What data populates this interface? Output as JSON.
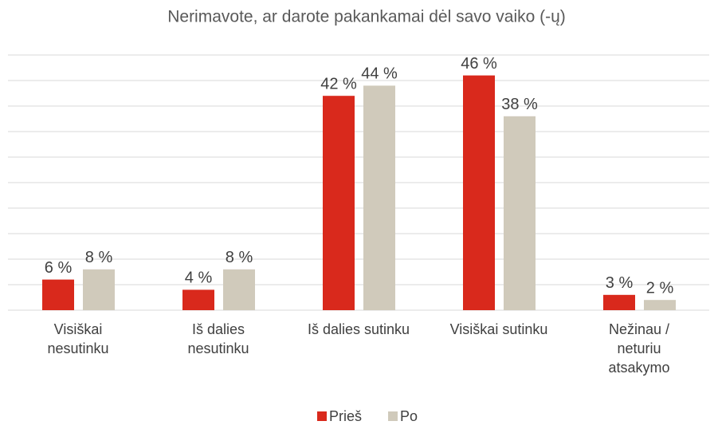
{
  "chart_data": {
    "type": "bar",
    "title": "Nerimavote, ar darote pakankamai dėl savo vaiko (-ų)",
    "categories": [
      [
        "Visiškai",
        "nesutinku"
      ],
      [
        "Iš dalies",
        "nesutinku"
      ],
      [
        "Iš dalies sutinku"
      ],
      [
        "Visiškai sutinku"
      ],
      [
        "Nežinau /",
        "neturiu",
        "atsakymo"
      ]
    ],
    "series": [
      {
        "name": "Prieš",
        "color": "#d9291c",
        "values": [
          6,
          4,
          42,
          46,
          3
        ],
        "value_labels": [
          "6 %",
          "4 %",
          "42 %",
          "46 %",
          "3 %"
        ]
      },
      {
        "name": "Po",
        "color": "#d0cabb",
        "values": [
          8,
          8,
          44,
          38,
          2
        ],
        "value_labels": [
          "8 %",
          "8 %",
          "44 %",
          "38 %",
          "2 %"
        ]
      }
    ],
    "ylim": [
      0,
      50
    ],
    "yticks": [
      0,
      5,
      10,
      15,
      20,
      25,
      30,
      35,
      40,
      45,
      50
    ],
    "grid": true,
    "legend": "bottom"
  }
}
